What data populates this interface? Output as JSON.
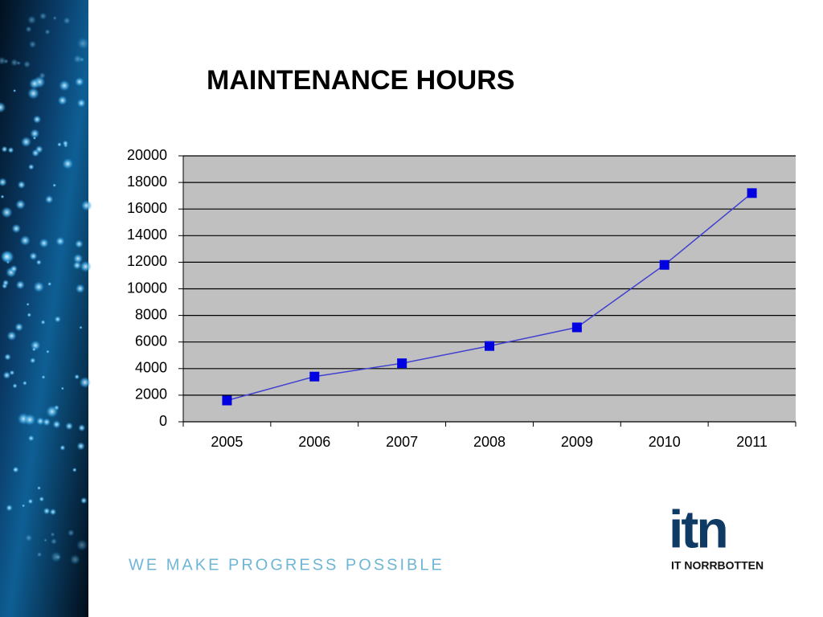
{
  "chart_data": {
    "type": "line",
    "title": "MAINTENANCE HOURS",
    "categories": [
      "2005",
      "2006",
      "2007",
      "2008",
      "2009",
      "2010",
      "2011"
    ],
    "values": [
      1600,
      3400,
      4400,
      5700,
      7100,
      11800,
      17200
    ],
    "color": "#0000e0",
    "line_color": "#4040d0",
    "ylim": [
      0,
      20000
    ],
    "yticks": [
      0,
      2000,
      4000,
      6000,
      8000,
      10000,
      12000,
      14000,
      16000,
      18000,
      20000
    ],
    "grid": true
  },
  "tagline": "WE MAKE PROGRESS POSSIBLE",
  "logo": {
    "mark": "itn",
    "name": "IT NORRBOTTEN"
  }
}
